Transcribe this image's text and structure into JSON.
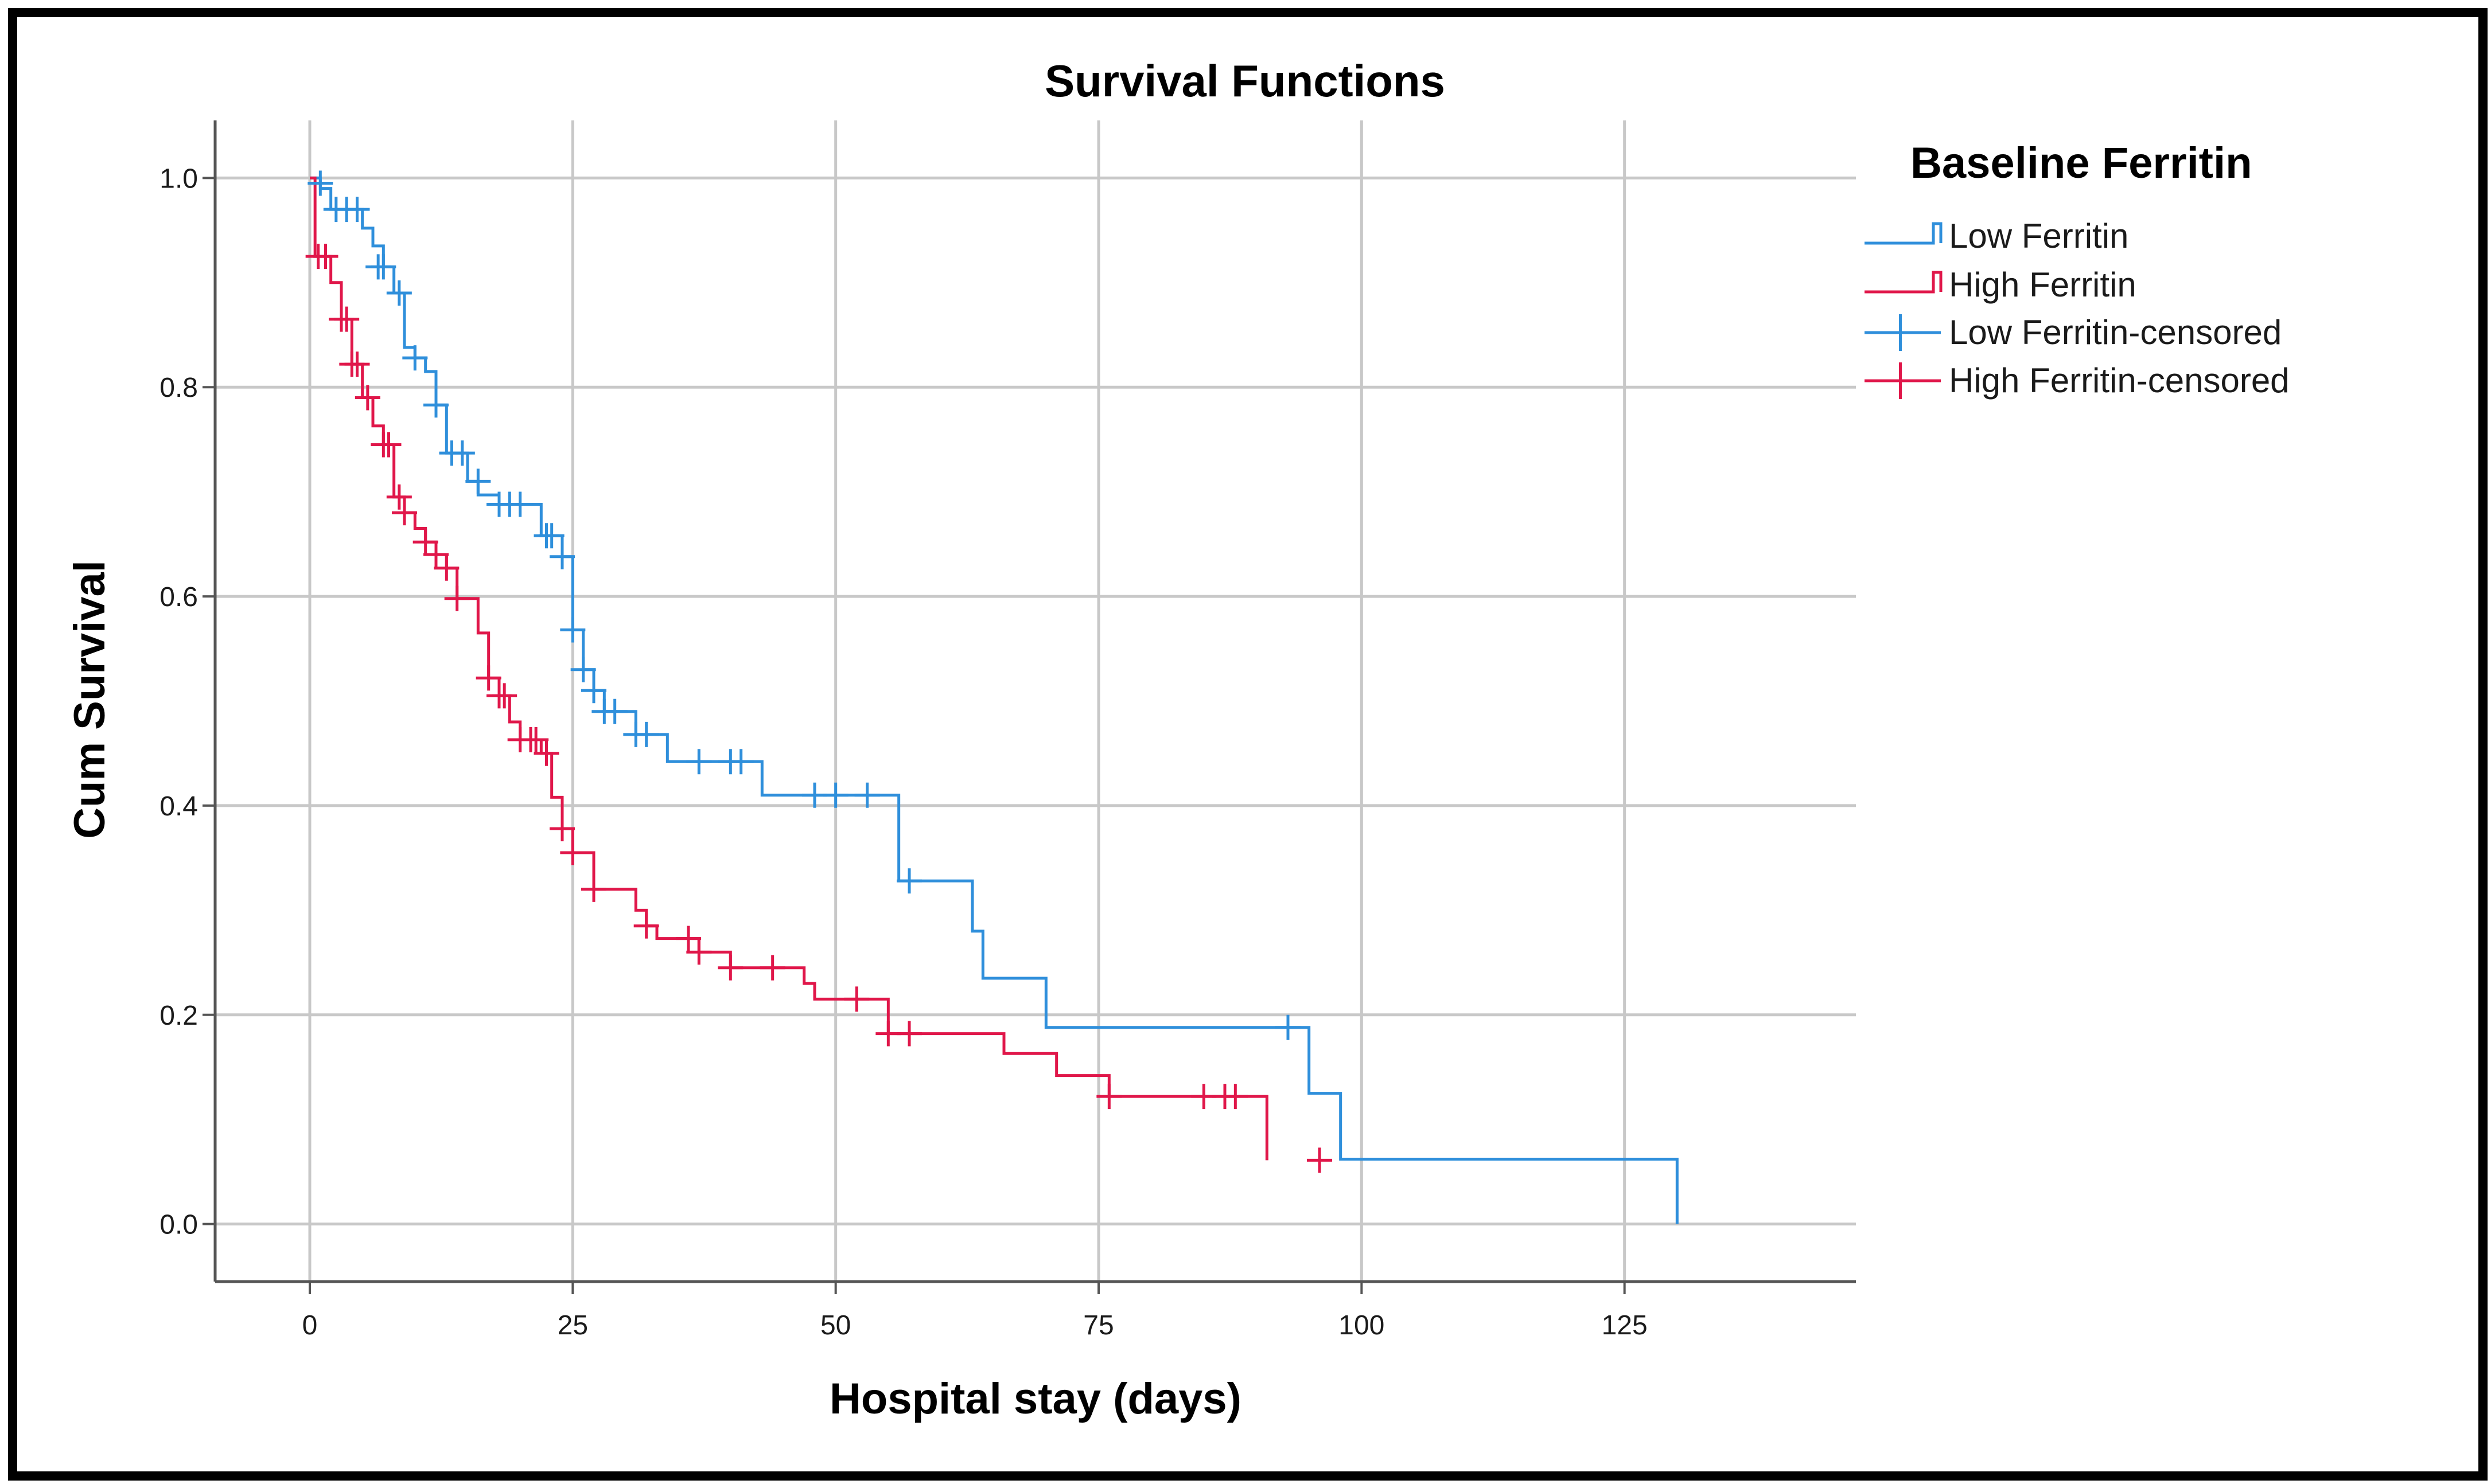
{
  "chart_data": {
    "type": "line",
    "title": "Survival Functions",
    "xlabel": "Hospital stay (days)",
    "ylabel": "Cum Survival",
    "xlim": [
      -9,
      147
    ],
    "ylim": [
      -0.055,
      1.055
    ],
    "xticks": [
      0,
      25,
      50,
      75,
      100,
      125
    ],
    "yticks": [
      0.0,
      0.2,
      0.4,
      0.6,
      0.8,
      1.0
    ],
    "xtick_labels": [
      "0",
      "25",
      "50",
      "75",
      "100",
      "125"
    ],
    "ytick_labels": [
      "0.0",
      "0.2",
      "0.4",
      "0.6",
      "0.8",
      "1.0"
    ],
    "grid": true,
    "legend": {
      "title": "Baseline Ferritin",
      "position": "right",
      "entries": [
        {
          "label": "Low Ferritin",
          "kind": "step",
          "series": "low"
        },
        {
          "label": "High Ferritin",
          "kind": "step",
          "series": "high"
        },
        {
          "label": "Low Ferritin-censored",
          "kind": "censor",
          "series": "low"
        },
        {
          "label": "High Ferritin-censored",
          "kind": "censor",
          "series": "high"
        }
      ]
    },
    "series": [
      {
        "name": "Low Ferritin",
        "key": "low",
        "color": "#2f8fdb",
        "steps": [
          [
            0,
            1.0
          ],
          [
            1,
            0.99
          ],
          [
            2,
            0.97
          ],
          [
            5,
            0.952
          ],
          [
            6,
            0.935
          ],
          [
            7,
            0.915
          ],
          [
            8,
            0.89
          ],
          [
            9,
            0.838
          ],
          [
            10,
            0.828
          ],
          [
            11,
            0.815
          ],
          [
            12,
            0.783
          ],
          [
            13,
            0.737
          ],
          [
            15,
            0.71
          ],
          [
            16,
            0.697
          ],
          [
            18,
            0.688
          ],
          [
            22,
            0.658
          ],
          [
            24,
            0.638
          ],
          [
            25,
            0.568
          ],
          [
            26,
            0.53
          ],
          [
            27,
            0.51
          ],
          [
            28,
            0.49
          ],
          [
            31,
            0.468
          ],
          [
            34,
            0.442
          ],
          [
            43,
            0.41
          ],
          [
            56,
            0.328
          ],
          [
            63,
            0.28
          ],
          [
            64,
            0.235
          ],
          [
            70,
            0.188
          ],
          [
            95,
            0.125
          ],
          [
            98,
            0.062
          ],
          [
            130,
            0.0
          ]
        ],
        "censored": [
          [
            1,
            0.995
          ],
          [
            2.5,
            0.97
          ],
          [
            3.5,
            0.97
          ],
          [
            4.5,
            0.97
          ],
          [
            6.5,
            0.915
          ],
          [
            7,
            0.915
          ],
          [
            8.5,
            0.89
          ],
          [
            10,
            0.828
          ],
          [
            12,
            0.783
          ],
          [
            13.5,
            0.737
          ],
          [
            14.5,
            0.737
          ],
          [
            16,
            0.71
          ],
          [
            18,
            0.688
          ],
          [
            19,
            0.688
          ],
          [
            20,
            0.688
          ],
          [
            22.5,
            0.658
          ],
          [
            23,
            0.658
          ],
          [
            24,
            0.638
          ],
          [
            25,
            0.568
          ],
          [
            26,
            0.53
          ],
          [
            27,
            0.51
          ],
          [
            28,
            0.49
          ],
          [
            29,
            0.49
          ],
          [
            31,
            0.468
          ],
          [
            32,
            0.468
          ],
          [
            37,
            0.442
          ],
          [
            40,
            0.442
          ],
          [
            41,
            0.442
          ],
          [
            48,
            0.41
          ],
          [
            50,
            0.41
          ],
          [
            53,
            0.41
          ],
          [
            57,
            0.328
          ],
          [
            93,
            0.188
          ]
        ]
      },
      {
        "name": "High Ferritin",
        "key": "high",
        "color": "#e0174a",
        "steps": [
          [
            0,
            1.0
          ],
          [
            0.5,
            0.925
          ],
          [
            2,
            0.9
          ],
          [
            3,
            0.865
          ],
          [
            4,
            0.822
          ],
          [
            5,
            0.79
          ],
          [
            6,
            0.763
          ],
          [
            7,
            0.745
          ],
          [
            8,
            0.695
          ],
          [
            9,
            0.68
          ],
          [
            10,
            0.665
          ],
          [
            11,
            0.652
          ],
          [
            12,
            0.64
          ],
          [
            13,
            0.627
          ],
          [
            14,
            0.598
          ],
          [
            16,
            0.565
          ],
          [
            17,
            0.522
          ],
          [
            18,
            0.505
          ],
          [
            19,
            0.48
          ],
          [
            20,
            0.463
          ],
          [
            22,
            0.45
          ],
          [
            23,
            0.408
          ],
          [
            24,
            0.378
          ],
          [
            25,
            0.355
          ],
          [
            27,
            0.32
          ],
          [
            31,
            0.3
          ],
          [
            32,
            0.285
          ],
          [
            33,
            0.273
          ],
          [
            37,
            0.26
          ],
          [
            40,
            0.245
          ],
          [
            47,
            0.23
          ],
          [
            48,
            0.215
          ],
          [
            55,
            0.182
          ],
          [
            66,
            0.163
          ],
          [
            71,
            0.142
          ],
          [
            76,
            0.122
          ],
          [
            91,
            0.061
          ]
        ],
        "censored": [
          [
            0.8,
            0.925
          ],
          [
            1.5,
            0.925
          ],
          [
            3,
            0.865
          ],
          [
            3.5,
            0.865
          ],
          [
            4,
            0.822
          ],
          [
            4.5,
            0.822
          ],
          [
            5.5,
            0.79
          ],
          [
            7,
            0.745
          ],
          [
            7.5,
            0.745
          ],
          [
            8.5,
            0.695
          ],
          [
            9,
            0.68
          ],
          [
            11,
            0.652
          ],
          [
            12,
            0.64
          ],
          [
            13,
            0.627
          ],
          [
            14,
            0.598
          ],
          [
            17,
            0.522
          ],
          [
            18,
            0.505
          ],
          [
            18.5,
            0.505
          ],
          [
            20,
            0.463
          ],
          [
            21,
            0.463
          ],
          [
            21.5,
            0.463
          ],
          [
            22.5,
            0.45
          ],
          [
            24,
            0.378
          ],
          [
            25,
            0.355
          ],
          [
            27,
            0.32
          ],
          [
            32,
            0.285
          ],
          [
            36,
            0.273
          ],
          [
            37,
            0.26
          ],
          [
            40,
            0.245
          ],
          [
            44,
            0.245
          ],
          [
            52,
            0.215
          ],
          [
            55,
            0.182
          ],
          [
            57,
            0.182
          ],
          [
            76,
            0.122
          ],
          [
            85,
            0.122
          ],
          [
            87,
            0.122
          ],
          [
            88,
            0.122
          ],
          [
            96,
            0.061
          ]
        ]
      }
    ]
  }
}
